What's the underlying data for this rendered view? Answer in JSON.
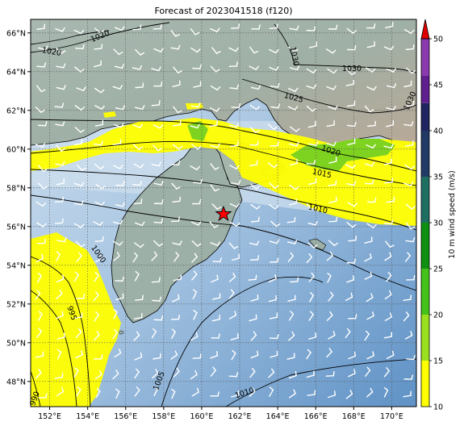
{
  "title": "Forecast of 2023041518 (f120)",
  "colorbar": {
    "label": "10 m wind speed (m/s)",
    "ticks": [
      "10",
      "15",
      "20",
      "25",
      "30",
      "35",
      "40",
      "45",
      "50"
    ],
    "levels": [
      10,
      15,
      20,
      25,
      30,
      35,
      40,
      45,
      50
    ],
    "colors": [
      "#ffff00",
      "#9be01e",
      "#44c21a",
      "#109012",
      "#1e6e62",
      "#2a5478",
      "#223a66",
      "#1e2560",
      "#5f1f8e",
      "#8a3aac",
      "#a048c0"
    ],
    "extend_color": "#e00000"
  },
  "axes": {
    "lon_ticks": [
      "152°E",
      "154°E",
      "156°E",
      "158°E",
      "160°E",
      "162°E",
      "164°E",
      "166°E",
      "168°E",
      "170°E"
    ],
    "lat_ticks": [
      "66°N",
      "64°N",
      "62°N",
      "60°N",
      "58°N",
      "56°N",
      "54°N",
      "52°N",
      "50°N",
      "48°N"
    ],
    "lon_range": [
      151.0,
      171.3
    ],
    "lat_range": [
      46.7,
      66.7
    ],
    "grid": true
  },
  "contours": {
    "labels": [
      "1020",
      "1020",
      "1030",
      "1030",
      "1030",
      "1025",
      "1020",
      "1015",
      "1010",
      "1000",
      "995",
      "1005",
      "1010",
      "990"
    ]
  },
  "marker": {
    "name": "storm-center-star",
    "lon": 161.3,
    "lat": 56.6,
    "color": "#ff0000"
  }
}
